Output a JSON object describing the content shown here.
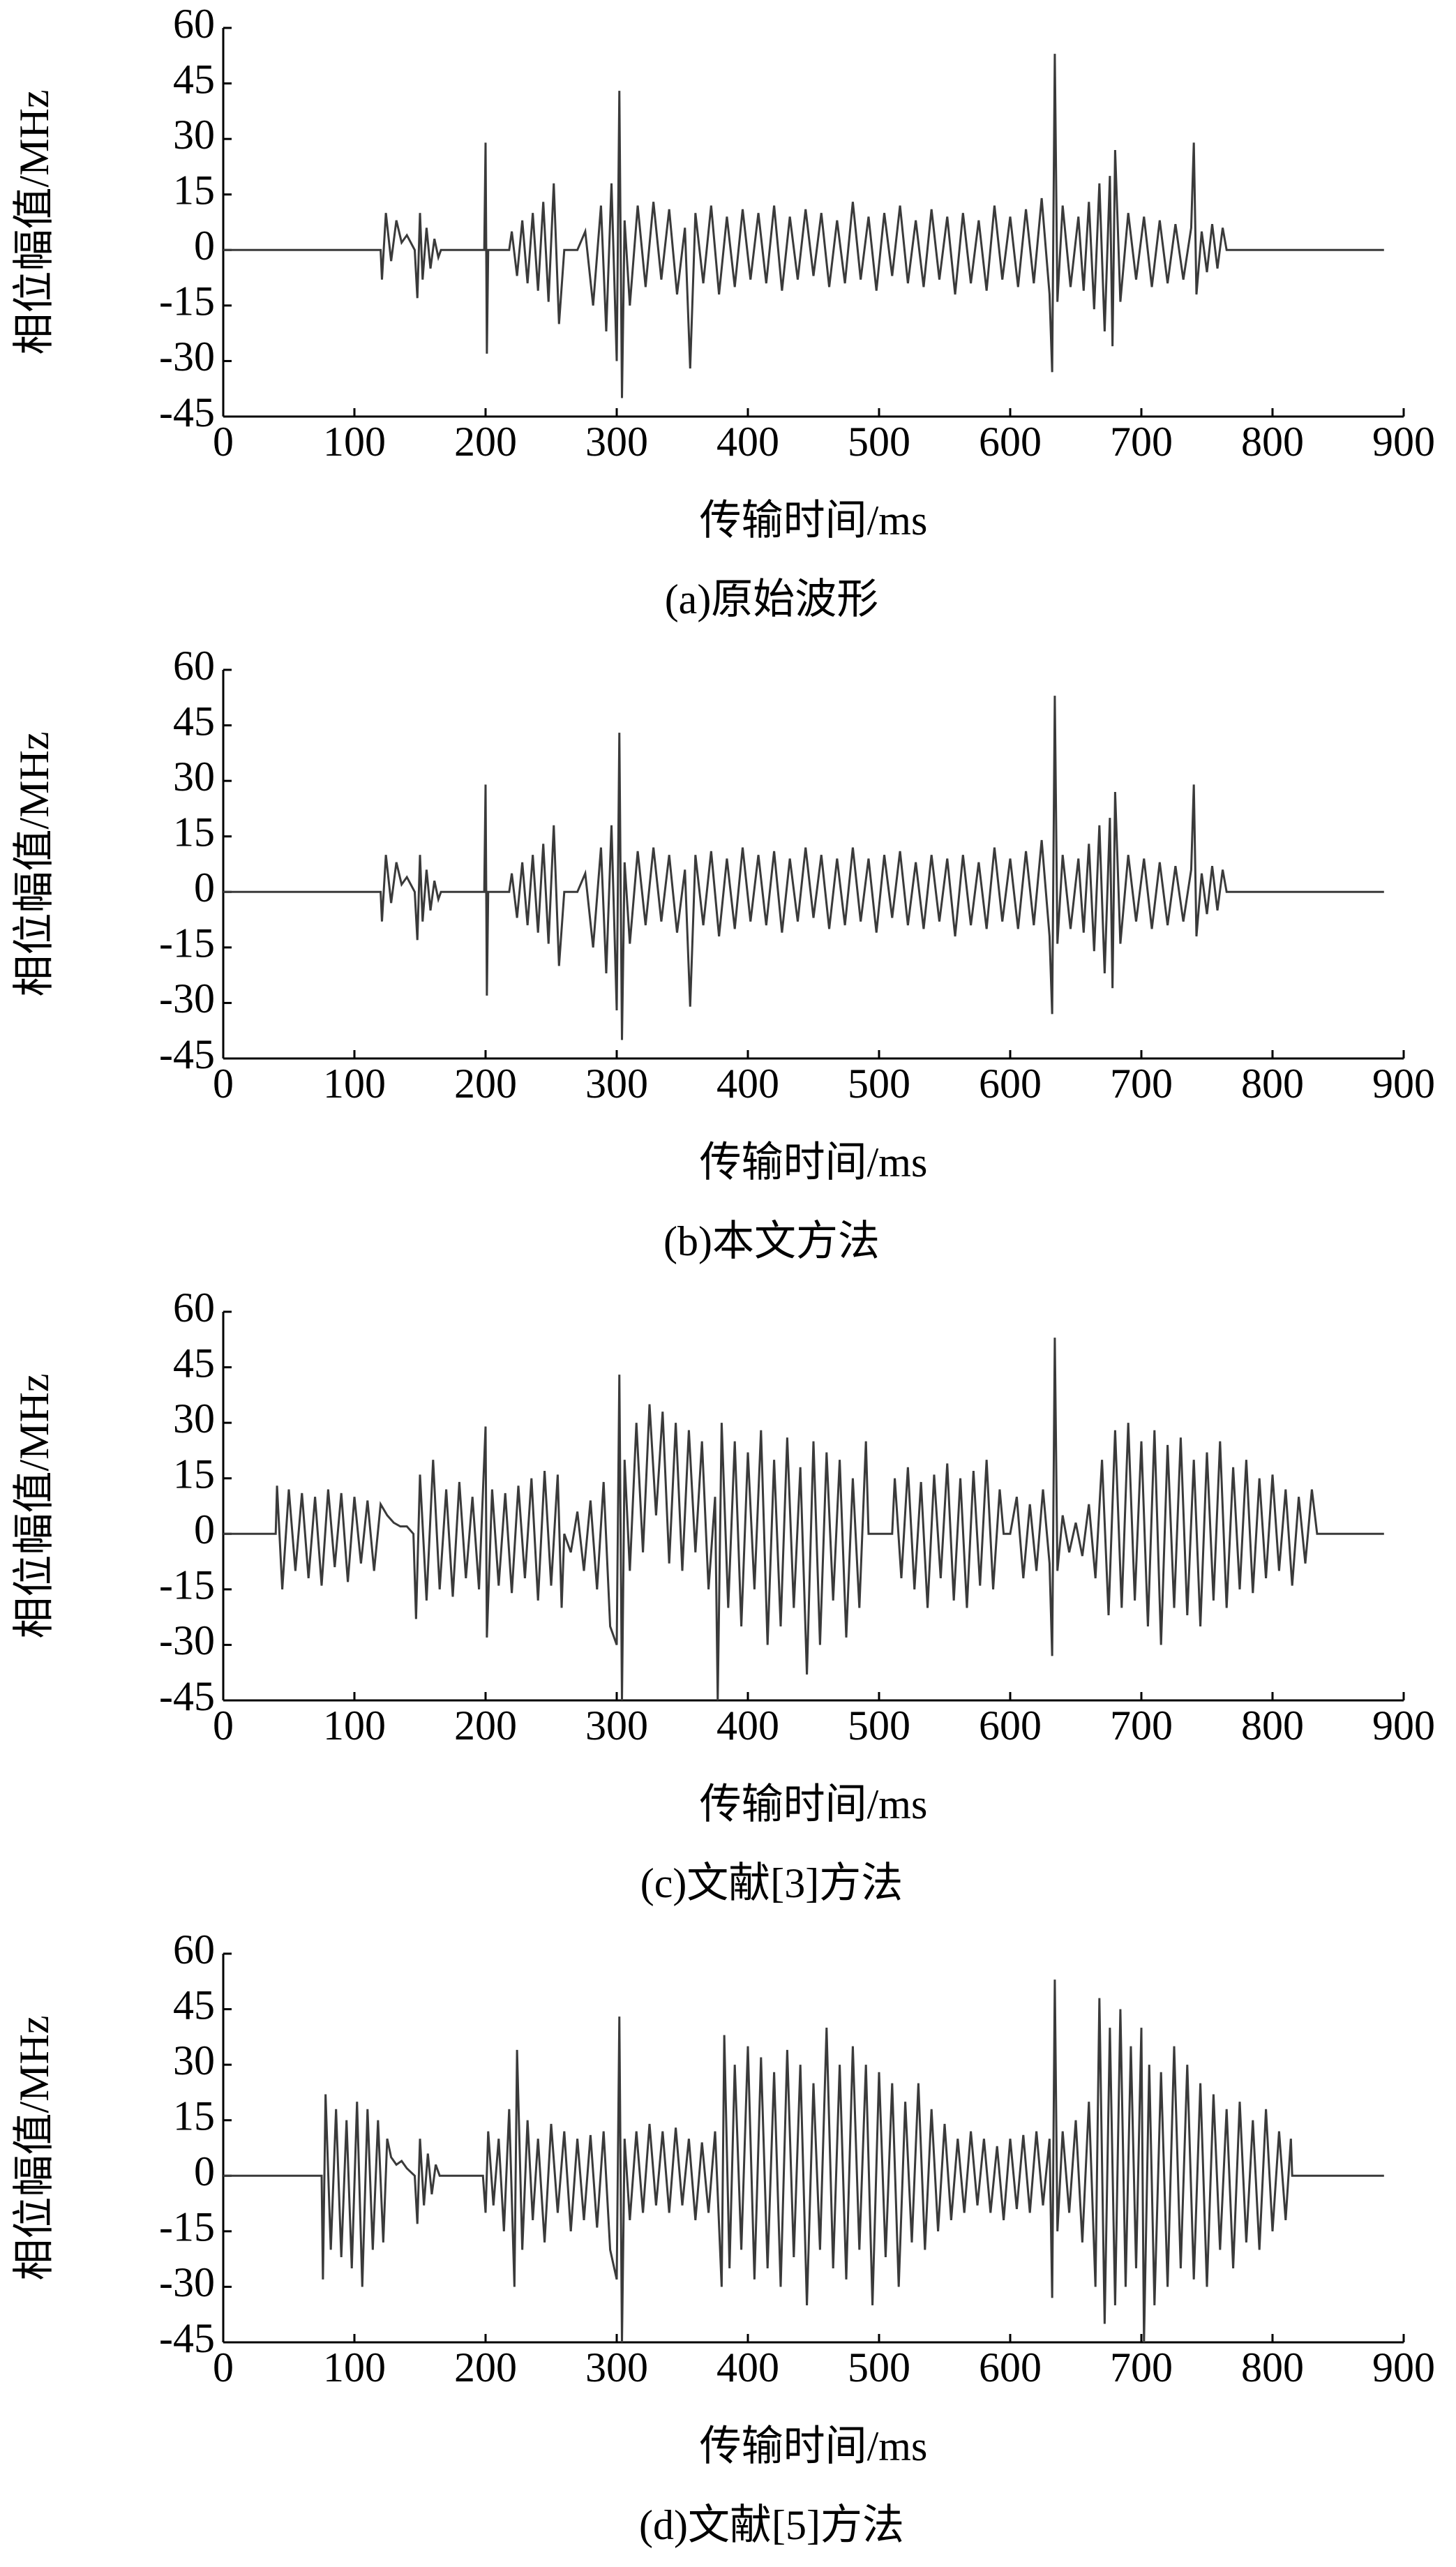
{
  "chart_data": [
    {
      "type": "line",
      "title": "(a)原始波形",
      "xlabel": "传输时间/ms",
      "ylabel": "相位幅值/MHz",
      "color": "#3a3a3a",
      "xlim": [
        0,
        900
      ],
      "ylim": [
        -45,
        60
      ],
      "xticks": [
        0,
        100,
        200,
        300,
        400,
        500,
        600,
        700,
        800,
        900
      ],
      "yticks": [
        -45,
        -30,
        -15,
        0,
        15,
        30,
        45,
        60
      ],
      "x": [
        0,
        120,
        121,
        124,
        128,
        132,
        136,
        140,
        146,
        148,
        150,
        152,
        155,
        158,
        161,
        164,
        166,
        199,
        200,
        201,
        202,
        218,
        220,
        224,
        228,
        232,
        236,
        240,
        244,
        248,
        252,
        256,
        260,
        270,
        276,
        282,
        288,
        292,
        296,
        300,
        302,
        304,
        306,
        310,
        316,
        322,
        328,
        334,
        340,
        346,
        352,
        356,
        360,
        366,
        372,
        378,
        384,
        390,
        396,
        402,
        408,
        414,
        420,
        426,
        432,
        438,
        444,
        450,
        456,
        462,
        468,
        474,
        480,
        486,
        492,
        498,
        504,
        510,
        516,
        522,
        528,
        534,
        540,
        546,
        552,
        558,
        564,
        570,
        576,
        582,
        588,
        594,
        600,
        606,
        612,
        618,
        624,
        630,
        632,
        634,
        636,
        640,
        646,
        652,
        656,
        660,
        664,
        668,
        672,
        676,
        678,
        680,
        684,
        690,
        696,
        702,
        708,
        714,
        720,
        726,
        732,
        738,
        740,
        742,
        746,
        750,
        754,
        758,
        762,
        765,
        766,
        885
      ],
      "values": [
        0,
        0,
        -8,
        10,
        -3,
        8,
        2,
        4,
        0,
        -13,
        10,
        -8,
        6,
        -5,
        3,
        -2,
        0,
        0,
        29,
        -28,
        0,
        0,
        5,
        -7,
        8,
        -9,
        10,
        -11,
        13,
        -14,
        18,
        -20,
        0,
        0,
        5,
        -15,
        12,
        -22,
        18,
        -30,
        43,
        -40,
        8,
        -15,
        12,
        -10,
        13,
        -8,
        11,
        -12,
        6,
        -32,
        10,
        -9,
        12,
        -12,
        9,
        -10,
        11,
        -8,
        10,
        -9,
        12,
        -11,
        9,
        -8,
        11,
        -7,
        10,
        -10,
        8,
        -9,
        13,
        -8,
        9,
        -11,
        10,
        -7,
        12,
        -9,
        8,
        -10,
        11,
        -8,
        9,
        -12,
        10,
        -9,
        8,
        -11,
        12,
        -8,
        9,
        -10,
        11,
        -9,
        14,
        -12,
        -33,
        53,
        -14,
        12,
        -10,
        9,
        -11,
        13,
        -16,
        18,
        -22,
        20,
        -26,
        27,
        -14,
        10,
        -8,
        9,
        -10,
        8,
        -9,
        7,
        -8,
        6,
        29,
        -12,
        5,
        -6,
        7,
        -5,
        6,
        0,
        0,
        0
      ]
    },
    {
      "type": "line",
      "title": "(b)本文方法",
      "xlabel": "传输时间/ms",
      "ylabel": "相位幅值/MHz",
      "color": "#3a3a3a",
      "xlim": [
        0,
        900
      ],
      "ylim": [
        -45,
        60
      ],
      "xticks": [
        0,
        100,
        200,
        300,
        400,
        500,
        600,
        700,
        800,
        900
      ],
      "yticks": [
        -45,
        -30,
        -15,
        0,
        15,
        30,
        45,
        60
      ],
      "x": [
        0,
        120,
        121,
        124,
        128,
        132,
        136,
        140,
        146,
        148,
        150,
        152,
        155,
        158,
        161,
        164,
        166,
        199,
        200,
        201,
        202,
        218,
        220,
        224,
        228,
        232,
        236,
        240,
        244,
        248,
        252,
        256,
        260,
        270,
        276,
        282,
        288,
        292,
        296,
        300,
        302,
        304,
        306,
        310,
        316,
        322,
        328,
        334,
        340,
        346,
        352,
        356,
        360,
        366,
        372,
        378,
        384,
        390,
        396,
        402,
        408,
        414,
        420,
        426,
        432,
        438,
        444,
        450,
        456,
        462,
        468,
        474,
        480,
        486,
        492,
        498,
        504,
        510,
        516,
        522,
        528,
        534,
        540,
        546,
        552,
        558,
        564,
        570,
        576,
        582,
        588,
        594,
        600,
        606,
        612,
        618,
        624,
        630,
        632,
        634,
        636,
        640,
        646,
        652,
        656,
        660,
        664,
        668,
        672,
        676,
        678,
        680,
        684,
        690,
        696,
        702,
        708,
        714,
        720,
        726,
        732,
        738,
        740,
        742,
        746,
        750,
        754,
        758,
        762,
        765,
        766,
        885
      ],
      "values": [
        0,
        0,
        -8,
        10,
        -3,
        8,
        2,
        4,
        0,
        -13,
        10,
        -8,
        6,
        -5,
        3,
        -2,
        0,
        0,
        29,
        -28,
        0,
        0,
        5,
        -7,
        8,
        -9,
        10,
        -11,
        13,
        -14,
        18,
        -20,
        0,
        0,
        5,
        -15,
        12,
        -22,
        18,
        -32,
        43,
        -40,
        8,
        -14,
        11,
        -9,
        12,
        -8,
        10,
        -11,
        6,
        -31,
        10,
        -9,
        11,
        -12,
        9,
        -10,
        12,
        -8,
        10,
        -9,
        11,
        -11,
        9,
        -8,
        12,
        -7,
        10,
        -10,
        9,
        -9,
        12,
        -8,
        9,
        -11,
        10,
        -7,
        11,
        -9,
        8,
        -10,
        10,
        -8,
        9,
        -12,
        10,
        -9,
        8,
        -10,
        12,
        -8,
        9,
        -10,
        11,
        -9,
        14,
        -12,
        -33,
        53,
        -14,
        10,
        -10,
        9,
        -11,
        13,
        -16,
        18,
        -22,
        20,
        -26,
        27,
        -14,
        10,
        -8,
        9,
        -10,
        8,
        -9,
        7,
        -8,
        6,
        29,
        -12,
        5,
        -6,
        7,
        -5,
        6,
        0,
        0,
        0
      ]
    },
    {
      "type": "line",
      "title": "(c)文献[3]方法",
      "xlabel": "传输时间/ms",
      "ylabel": "相位幅值/MHz",
      "color": "#3a3a3a",
      "xlim": [
        0,
        900
      ],
      "ylim": [
        -45,
        60
      ],
      "xticks": [
        0,
        100,
        200,
        300,
        400,
        500,
        600,
        700,
        800,
        900
      ],
      "yticks": [
        -45,
        -30,
        -15,
        0,
        15,
        30,
        45,
        60
      ],
      "x": [
        0,
        40,
        41,
        45,
        50,
        55,
        60,
        65,
        70,
        75,
        80,
        85,
        90,
        95,
        100,
        105,
        110,
        115,
        120,
        125,
        130,
        135,
        140,
        145,
        147,
        150,
        155,
        160,
        165,
        170,
        175,
        180,
        185,
        190,
        195,
        200,
        201,
        205,
        210,
        215,
        220,
        225,
        230,
        235,
        240,
        245,
        250,
        255,
        258,
        260,
        265,
        270,
        275,
        280,
        285,
        290,
        295,
        300,
        302,
        304,
        306,
        310,
        315,
        320,
        325,
        330,
        335,
        340,
        345,
        350,
        355,
        360,
        365,
        370,
        375,
        377,
        380,
        385,
        390,
        395,
        400,
        405,
        410,
        415,
        420,
        425,
        430,
        435,
        440,
        445,
        450,
        455,
        460,
        465,
        470,
        475,
        480,
        485,
        490,
        492,
        510,
        512,
        517,
        522,
        527,
        532,
        537,
        542,
        547,
        552,
        557,
        562,
        567,
        572,
        577,
        582,
        587,
        592,
        595,
        600,
        605,
        610,
        615,
        620,
        625,
        630,
        632,
        634,
        636,
        640,
        645,
        650,
        655,
        660,
        665,
        670,
        675,
        680,
        685,
        690,
        695,
        700,
        705,
        710,
        715,
        720,
        725,
        730,
        735,
        740,
        745,
        750,
        755,
        760,
        765,
        770,
        775,
        780,
        785,
        790,
        795,
        800,
        805,
        810,
        815,
        820,
        825,
        830,
        834,
        885
      ],
      "values": [
        0,
        0,
        13,
        -15,
        12,
        -10,
        11,
        -12,
        10,
        -14,
        12,
        -9,
        11,
        -13,
        10,
        -8,
        9,
        -10,
        8,
        5,
        3,
        2,
        2,
        0,
        -23,
        16,
        -18,
        20,
        -15,
        12,
        -17,
        14,
        -12,
        10,
        -15,
        29,
        -28,
        12,
        -14,
        11,
        -16,
        13,
        -12,
        15,
        -18,
        17,
        -14,
        16,
        -20,
        0,
        -5,
        6,
        -10,
        9,
        -15,
        14,
        -25,
        -30,
        43,
        -45,
        20,
        -10,
        30,
        -5,
        35,
        5,
        33,
        -8,
        30,
        -10,
        28,
        -5,
        25,
        -15,
        10,
        -45,
        30,
        -20,
        25,
        -25,
        22,
        -15,
        28,
        -30,
        20,
        -25,
        26,
        -20,
        18,
        -38,
        25,
        -30,
        22,
        -18,
        20,
        -28,
        15,
        -20,
        25,
        0,
        0,
        15,
        -12,
        18,
        -15,
        14,
        -20,
        16,
        -12,
        19,
        -18,
        15,
        -20,
        17,
        -14,
        20,
        -15,
        12,
        0,
        0,
        10,
        -12,
        8,
        -10,
        12,
        -8,
        -33,
        53,
        -10,
        5,
        -5,
        3,
        -6,
        8,
        -12,
        20,
        -22,
        28,
        -20,
        30,
        -18,
        25,
        -25,
        28,
        -30,
        24,
        -20,
        26,
        -22,
        20,
        -25,
        22,
        -18,
        25,
        -20,
        18,
        -15,
        20,
        -16,
        15,
        -12,
        16,
        -10,
        12,
        -14,
        10,
        -8,
        12,
        0,
        0
      ]
    },
    {
      "type": "line",
      "title": "(d)文献[5]方法",
      "xlabel": "传输时间/ms",
      "ylabel": "相位幅值/MHz",
      "color": "#3a3a3a",
      "xlim": [
        0,
        900
      ],
      "ylim": [
        -45,
        60
      ],
      "xticks": [
        0,
        100,
        200,
        300,
        400,
        500,
        600,
        700,
        800,
        900
      ],
      "yticks": [
        -45,
        -30,
        -15,
        0,
        15,
        30,
        45,
        60
      ],
      "x": [
        0,
        75,
        76,
        78,
        82,
        86,
        90,
        94,
        98,
        102,
        106,
        110,
        114,
        118,
        122,
        125,
        128,
        132,
        136,
        140,
        146,
        148,
        150,
        153,
        156,
        159,
        162,
        165,
        198,
        200,
        202,
        206,
        210,
        214,
        218,
        222,
        224,
        228,
        232,
        236,
        240,
        245,
        250,
        255,
        260,
        265,
        270,
        275,
        280,
        285,
        290,
        295,
        300,
        302,
        304,
        306,
        310,
        315,
        320,
        325,
        330,
        335,
        340,
        345,
        350,
        355,
        360,
        365,
        370,
        375,
        380,
        382,
        386,
        390,
        395,
        400,
        405,
        410,
        415,
        420,
        425,
        430,
        435,
        440,
        445,
        450,
        455,
        460,
        465,
        470,
        475,
        480,
        485,
        490,
        495,
        500,
        505,
        510,
        515,
        520,
        525,
        530,
        535,
        540,
        545,
        550,
        555,
        560,
        565,
        570,
        575,
        580,
        585,
        590,
        595,
        600,
        605,
        610,
        615,
        620,
        625,
        630,
        632,
        634,
        636,
        640,
        645,
        650,
        655,
        660,
        665,
        668,
        672,
        676,
        680,
        684,
        688,
        692,
        696,
        700,
        702,
        706,
        710,
        715,
        720,
        725,
        730,
        735,
        740,
        745,
        750,
        755,
        760,
        765,
        770,
        775,
        780,
        785,
        790,
        795,
        800,
        805,
        810,
        814,
        815,
        885
      ],
      "values": [
        0,
        0,
        -28,
        22,
        -20,
        18,
        -22,
        15,
        -25,
        20,
        -30,
        18,
        -20,
        15,
        -18,
        10,
        5,
        3,
        4,
        2,
        0,
        -13,
        10,
        -8,
        6,
        -5,
        3,
        0,
        0,
        -10,
        12,
        -8,
        10,
        -15,
        18,
        -30,
        34,
        -20,
        15,
        -12,
        10,
        -18,
        14,
        -10,
        12,
        -15,
        10,
        -12,
        11,
        -14,
        12,
        -20,
        -28,
        43,
        -45,
        10,
        -12,
        12,
        -10,
        14,
        -8,
        12,
        -10,
        13,
        -8,
        10,
        -12,
        9,
        -10,
        12,
        -30,
        38,
        -25,
        30,
        -20,
        35,
        -28,
        32,
        -25,
        28,
        -30,
        34,
        -22,
        30,
        -35,
        25,
        -20,
        40,
        -25,
        30,
        -28,
        35,
        -20,
        30,
        -35,
        28,
        -22,
        25,
        -30,
        20,
        -18,
        25,
        -20,
        18,
        -15,
        14,
        -12,
        10,
        -10,
        12,
        -8,
        10,
        -10,
        8,
        -12,
        10,
        -9,
        11,
        -10,
        12,
        -8,
        10,
        -33,
        53,
        -15,
        12,
        -10,
        15,
        -18,
        20,
        -30,
        48,
        -40,
        40,
        -35,
        45,
        -30,
        35,
        -25,
        40,
        -45,
        30,
        -35,
        28,
        -30,
        35,
        -25,
        30,
        -28,
        25,
        -30,
        22,
        -20,
        18,
        -25,
        20,
        -18,
        15,
        -20,
        18,
        -15,
        12,
        -12,
        10,
        0,
        0
      ]
    }
  ]
}
